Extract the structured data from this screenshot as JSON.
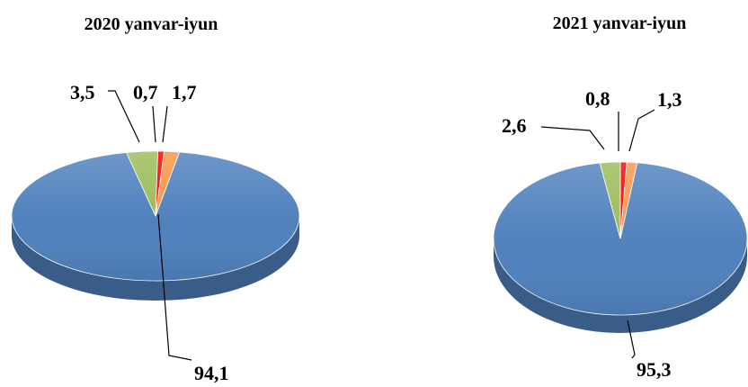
{
  "chart_data": [
    {
      "type": "pie",
      "title": "2020 yanvar-iyun",
      "categories": [
        "",
        "",
        "",
        ""
      ],
      "values": [
        94.1,
        3.5,
        0.7,
        1.7
      ],
      "labels": [
        "94,1",
        "3,5",
        "0,7",
        "1,7"
      ],
      "colors": [
        "#4F81BD",
        "#9BBB59",
        "#FF0000",
        "#F79646"
      ],
      "style": "3d-tilted",
      "legend": "none"
    },
    {
      "type": "pie",
      "title": "2021 yanvar-iyun",
      "categories": [
        "",
        "",
        "",
        ""
      ],
      "values": [
        95.3,
        2.6,
        0.8,
        1.3
      ],
      "labels": [
        "95,3",
        "2,6",
        "0,8",
        "1,3"
      ],
      "colors": [
        "#4F81BD",
        "#9BBB59",
        "#FF0000",
        "#F79646"
      ],
      "style": "3d-tilted",
      "legend": "none"
    }
  ]
}
